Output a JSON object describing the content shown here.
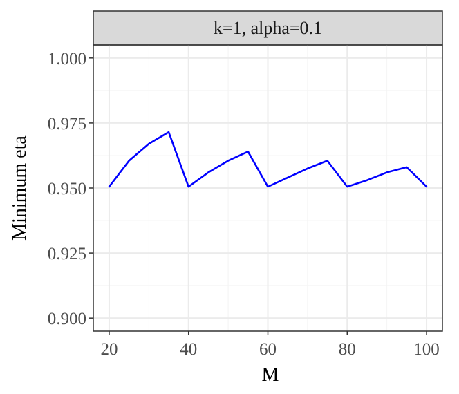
{
  "chart_data": {
    "type": "line",
    "facet_label": "k=1, alpha=0.1",
    "xlabel": "M",
    "ylabel": "Minimum eta",
    "xlim": [
      16,
      104
    ],
    "ylim": [
      0.895,
      1.005
    ],
    "x_ticks": [
      20,
      40,
      60,
      80,
      100
    ],
    "x_tick_labels": [
      "20",
      "40",
      "60",
      "80",
      "100"
    ],
    "y_ticks": [
      0.9,
      0.925,
      0.95,
      0.975,
      1.0
    ],
    "y_tick_labels": [
      "0.900",
      "0.925",
      "0.950",
      "0.975",
      "1.000"
    ],
    "grid": true,
    "series": [
      {
        "color": "#0000ff",
        "x": [
          20,
          25,
          30,
          35,
          40,
          45,
          50,
          55,
          60,
          65,
          70,
          75,
          80,
          85,
          90,
          95,
          100
        ],
        "y": [
          0.9505,
          0.9605,
          0.967,
          0.9715,
          0.9505,
          0.956,
          0.9605,
          0.964,
          0.9505,
          0.954,
          0.9575,
          0.9605,
          0.9505,
          0.953,
          0.956,
          0.958,
          0.9505
        ]
      }
    ]
  }
}
